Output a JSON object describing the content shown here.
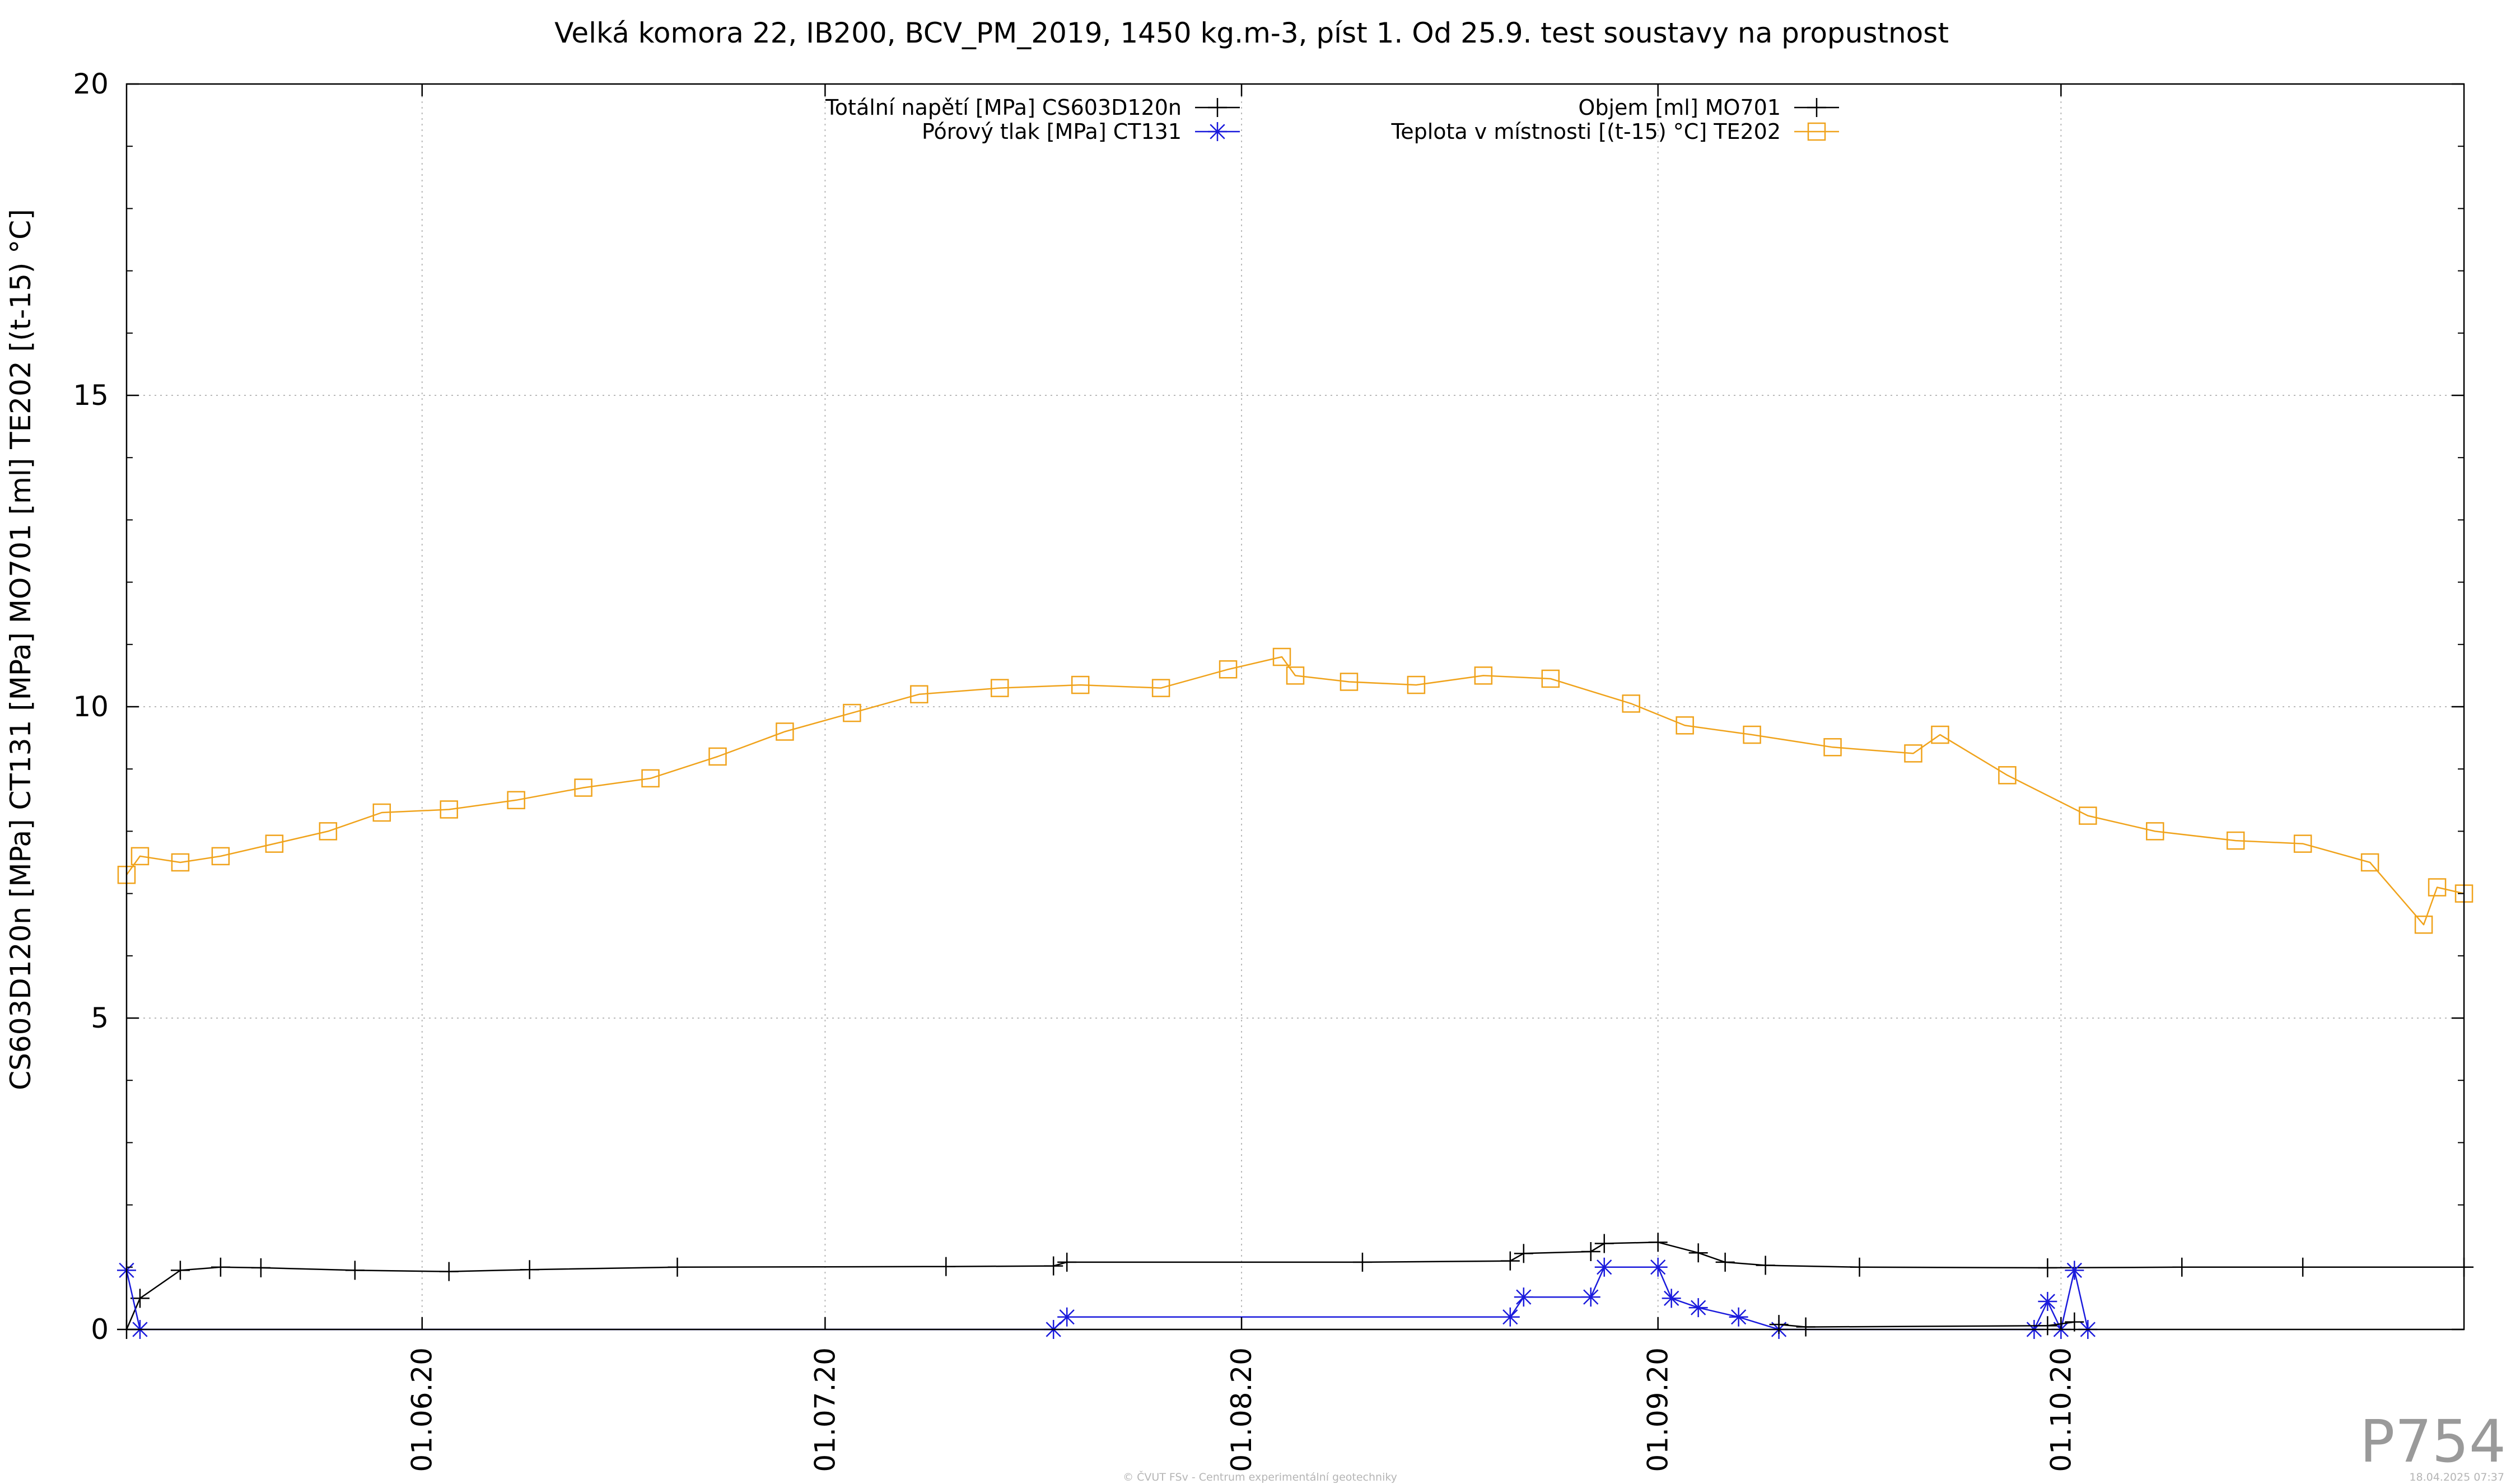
{
  "chart_data": {
    "type": "line",
    "title": "Velká komora 22, IB200, BCV_PM_2019, 1450 kg.m-3, píst 1. Od 25.9. test soustavy na propustnost",
    "xlabel": "",
    "ylabel": "CS603D120n [MPa] CT131 [MPa] MO701 [ml] TE202 [(t-15) °C]",
    "xlim": [
      "2020-05-10",
      "2020-10-31"
    ],
    "ylim": [
      0,
      20
    ],
    "x_ticks": [
      "01.06.20",
      "01.07.20",
      "01.08.20",
      "01.09.20",
      "01.10.20"
    ],
    "y_ticks": [
      "0",
      "5",
      "10",
      "15",
      "20"
    ],
    "grid": true,
    "legend_position": "top-center",
    "series": [
      {
        "name": "Totální napětí [MPa] CS603D120n",
        "color": "#000000",
        "marker": "plus",
        "points": [
          [
            "2020-05-10",
            0.0
          ],
          [
            "2020-05-11",
            0.5
          ],
          [
            "2020-05-14",
            0.95
          ],
          [
            "2020-05-17",
            1.0
          ],
          [
            "2020-05-20",
            0.99
          ],
          [
            "2020-05-27",
            0.95
          ],
          [
            "2020-06-03",
            0.93
          ],
          [
            "2020-06-09",
            0.96
          ],
          [
            "2020-06-20",
            1.0
          ],
          [
            "2020-07-10",
            1.01
          ],
          [
            "2020-07-18",
            1.02
          ],
          [
            "2020-07-19",
            1.08
          ],
          [
            "2020-08-10",
            1.08
          ],
          [
            "2020-08-21",
            1.1
          ],
          [
            "2020-08-22",
            1.22
          ],
          [
            "2020-08-27",
            1.25
          ],
          [
            "2020-08-28",
            1.38
          ],
          [
            "2020-09-01",
            1.4
          ],
          [
            "2020-09-04",
            1.23
          ],
          [
            "2020-09-06",
            1.08
          ],
          [
            "2020-09-09",
            1.03
          ],
          [
            "2020-09-16",
            1.0
          ],
          [
            "2020-09-30",
            0.99
          ],
          [
            "2020-10-10",
            1.0
          ],
          [
            "2020-10-19",
            1.0
          ],
          [
            "2020-10-31",
            1.0
          ]
        ]
      },
      {
        "name": "Pórový tlak [MPa] CT131",
        "color": "#1a1adc",
        "marker": "star",
        "points": [
          [
            "2020-05-10",
            0.95
          ],
          [
            "2020-05-11",
            0.0
          ],
          [
            "2020-07-18",
            0.0
          ],
          [
            "2020-07-19",
            0.2
          ],
          [
            "2020-08-21",
            0.2
          ],
          [
            "2020-08-22",
            0.52
          ],
          [
            "2020-08-27",
            0.52
          ],
          [
            "2020-08-28",
            1.0
          ],
          [
            "2020-09-01",
            1.0
          ],
          [
            "2020-09-02",
            0.5
          ],
          [
            "2020-09-04",
            0.35
          ],
          [
            "2020-09-07",
            0.2
          ],
          [
            "2020-09-10",
            0.0
          ],
          [
            "2020-09-29",
            0.0
          ],
          [
            "2020-09-30",
            0.45
          ],
          [
            "2020-10-01",
            0.0
          ],
          [
            "2020-10-02",
            0.95
          ],
          [
            "2020-10-03",
            0.0
          ]
        ]
      },
      {
        "name": "Objem [ml] MO701",
        "color": "#000000",
        "marker": "plus",
        "points": [
          [
            "2020-09-10",
            0.08
          ],
          [
            "2020-09-12",
            0.04
          ],
          [
            "2020-09-30",
            0.06
          ],
          [
            "2020-10-02",
            0.12
          ]
        ]
      },
      {
        "name": "Teplota v místnosti [(t-15) °C] TE202",
        "color": "#f0a31c",
        "marker": "square",
        "points": [
          [
            "2020-05-10",
            7.3
          ],
          [
            "2020-05-11",
            7.6
          ],
          [
            "2020-05-14",
            7.5
          ],
          [
            "2020-05-17",
            7.6
          ],
          [
            "2020-05-21",
            7.8
          ],
          [
            "2020-05-25",
            8.0
          ],
          [
            "2020-05-29",
            8.3
          ],
          [
            "2020-06-03",
            8.35
          ],
          [
            "2020-06-08",
            8.5
          ],
          [
            "2020-06-13",
            8.7
          ],
          [
            "2020-06-18",
            8.85
          ],
          [
            "2020-06-23",
            9.2
          ],
          [
            "2020-06-28",
            9.6
          ],
          [
            "2020-07-03",
            9.9
          ],
          [
            "2020-07-08",
            10.2
          ],
          [
            "2020-07-14",
            10.3
          ],
          [
            "2020-07-20",
            10.35
          ],
          [
            "2020-07-26",
            10.3
          ],
          [
            "2020-07-31",
            10.6
          ],
          [
            "2020-08-04",
            10.8
          ],
          [
            "2020-08-05",
            10.5
          ],
          [
            "2020-08-09",
            10.4
          ],
          [
            "2020-08-14",
            10.35
          ],
          [
            "2020-08-19",
            10.5
          ],
          [
            "2020-08-24",
            10.45
          ],
          [
            "2020-08-30",
            10.05
          ],
          [
            "2020-09-03",
            9.7
          ],
          [
            "2020-09-08",
            9.55
          ],
          [
            "2020-09-14",
            9.35
          ],
          [
            "2020-09-20",
            9.25
          ],
          [
            "2020-09-22",
            9.55
          ],
          [
            "2020-09-27",
            8.9
          ],
          [
            "2020-10-03",
            8.25
          ],
          [
            "2020-10-08",
            8.0
          ],
          [
            "2020-10-14",
            7.85
          ],
          [
            "2020-10-19",
            7.8
          ],
          [
            "2020-10-24",
            7.5
          ],
          [
            "2020-10-28",
            6.5
          ],
          [
            "2020-10-29",
            7.1
          ],
          [
            "2020-10-31",
            7.0
          ]
        ]
      }
    ]
  },
  "watermark": "P754",
  "footer_left": "© ČVUT FSv - Centrum experimentální geotechniky",
  "footer_right": "18.04.2025 07:37"
}
